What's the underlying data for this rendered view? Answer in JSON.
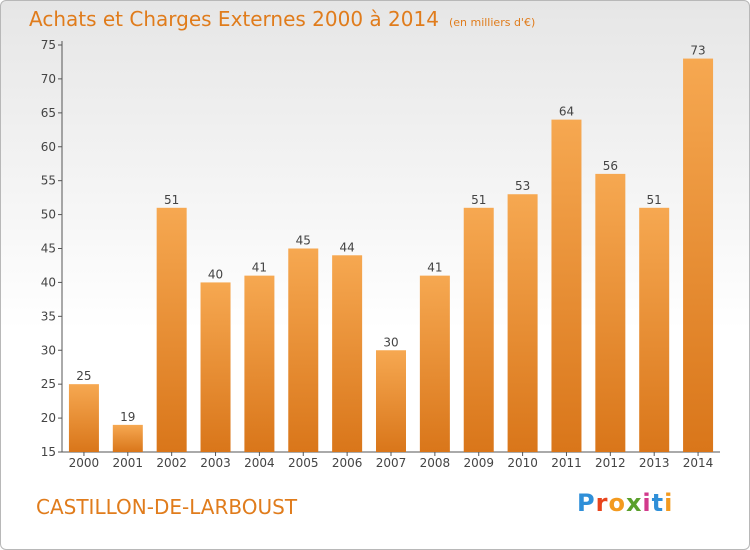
{
  "header": {
    "title": "Achats et Charges Externes 2000 à 2014",
    "unit": "(en milliers d'€)"
  },
  "footer": {
    "commune": "CASTILLON-DE-LARBOUST",
    "logo_text": "Proxiti"
  },
  "colors": {
    "accent": "#e07c1c",
    "bar_light": "#f6a851",
    "bar_dark": "#d9761a",
    "logo_letters": [
      "#2f8fd8",
      "#e8441c",
      "#f39a1f",
      "#5aa02c",
      "#d23a8c",
      "#2f8fd8",
      "#f39a1f"
    ]
  },
  "chart_data": {
    "type": "bar",
    "title": "Achats et Charges Externes 2000 à 2014",
    "subtitle": "(en milliers d'€)",
    "categories": [
      "2000",
      "2001",
      "2002",
      "2003",
      "2004",
      "2005",
      "2006",
      "2007",
      "2008",
      "2009",
      "2010",
      "2011",
      "2012",
      "2013",
      "2014"
    ],
    "values": [
      25,
      19,
      51,
      40,
      41,
      45,
      44,
      30,
      41,
      51,
      53,
      64,
      56,
      51,
      73
    ],
    "ylim": [
      15,
      75
    ],
    "yticks": [
      15,
      20,
      25,
      30,
      35,
      40,
      45,
      50,
      55,
      60,
      65,
      70,
      75
    ],
    "grid": false,
    "xlabel": "",
    "ylabel": ""
  }
}
